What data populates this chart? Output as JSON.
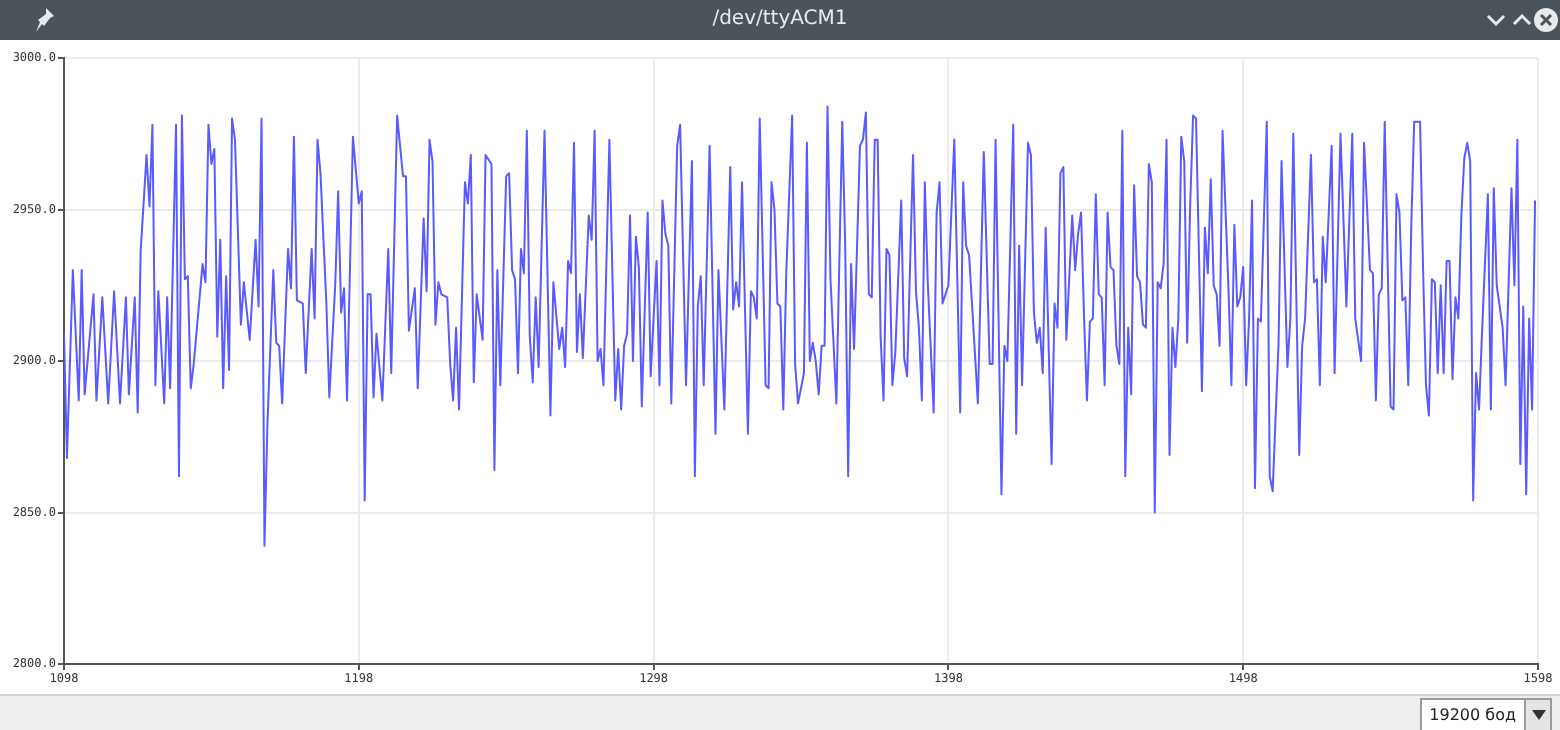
{
  "chart_data": {
    "type": "line",
    "title": "/dev/ttyACM1",
    "color": "#5a5aff",
    "grid": true,
    "legend": false,
    "marker": "none",
    "line_style": "solid",
    "xlim": [
      1098,
      1598
    ],
    "xticks": [
      1098,
      1198,
      1298,
      1398,
      1498,
      1598
    ],
    "ylim": [
      2800,
      3000
    ],
    "yticks": [
      {
        "value": 2800,
        "label": "2800.0"
      },
      {
        "value": 2850,
        "label": "2850.0"
      },
      {
        "value": 2900,
        "label": "2900.0"
      },
      {
        "value": 2950,
        "label": "2950.0"
      },
      {
        "value": 3000,
        "label": "3000.0"
      }
    ],
    "annotations": [
      "19200 бод"
    ],
    "x": [
      1098,
      1099,
      1101,
      1103,
      1104,
      1105,
      1108,
      1109,
      1111,
      1113,
      1115,
      1117,
      1119,
      1120,
      1122,
      1123,
      1124,
      1126,
      1127,
      1128,
      1129,
      1130,
      1132,
      1133,
      1134,
      1136,
      1137,
      1138,
      1139,
      1140,
      1141,
      1142,
      1145,
      1146,
      1147,
      1148,
      1149,
      1150,
      1151,
      1152,
      1153,
      1154,
      1155,
      1156,
      1158,
      1159,
      1161,
      1163,
      1164,
      1165,
      1166,
      1167,
      1169,
      1170,
      1171,
      1172,
      1174,
      1175,
      1176,
      1177,
      1179,
      1180,
      1182,
      1183,
      1184,
      1185,
      1187,
      1188,
      1190,
      1191,
      1192,
      1193,
      1194,
      1196,
      1198,
      1199,
      1200,
      1201,
      1202,
      1203,
      1204,
      1206,
      1208,
      1209,
      1211,
      1213,
      1214,
      1215,
      1217,
      1218,
      1220,
      1221,
      1222,
      1223,
      1224,
      1225,
      1226,
      1228,
      1229,
      1230,
      1231,
      1232,
      1234,
      1235,
      1236,
      1237,
      1238,
      1240,
      1241,
      1243,
      1244,
      1245,
      1246,
      1248,
      1249,
      1250,
      1251,
      1252,
      1253,
      1254,
      1255,
      1256,
      1257,
      1258,
      1259,
      1261,
      1263,
      1264,
      1266,
      1267,
      1268,
      1269,
      1270,
      1271,
      1272,
      1273,
      1274,
      1276,
      1277,
      1278,
      1279,
      1280,
      1281,
      1283,
      1285,
      1286,
      1287,
      1288,
      1289,
      1290,
      1291,
      1292,
      1293,
      1294,
      1296,
      1297,
      1299,
      1300,
      1301,
      1302,
      1303,
      1304,
      1306,
      1307,
      1309,
      1311,
      1312,
      1313,
      1314,
      1315,
      1317,
      1319,
      1320,
      1322,
      1324,
      1325,
      1326,
      1327,
      1328,
      1330,
      1331,
      1332,
      1333,
      1334,
      1336,
      1337,
      1338,
      1339,
      1340,
      1341,
      1342,
      1343,
      1345,
      1346,
      1347,
      1349,
      1350,
      1351,
      1352,
      1353,
      1354,
      1355,
      1356,
      1357,
      1358,
      1360,
      1362,
      1363,
      1364,
      1365,
      1366,
      1368,
      1369,
      1370,
      1371,
      1372,
      1373,
      1374,
      1375,
      1376,
      1377,
      1378,
      1379,
      1380,
      1382,
      1383,
      1384,
      1386,
      1387,
      1388,
      1389,
      1390,
      1391,
      1393,
      1394,
      1395,
      1396,
      1398,
      1400,
      1402,
      1403,
      1404,
      1405,
      1406,
      1408,
      1410,
      1412,
      1413,
      1414,
      1416,
      1417,
      1418,
      1420,
      1421,
      1422,
      1423,
      1425,
      1426,
      1427,
      1428,
      1429,
      1430,
      1431,
      1433,
      1434,
      1435,
      1436,
      1437,
      1438,
      1440,
      1441,
      1442,
      1443,
      1444,
      1445,
      1446,
      1447,
      1448,
      1449,
      1450,
      1451,
      1452,
      1453,
      1454,
      1455,
      1456,
      1457,
      1458,
      1459,
      1460,
      1461,
      1462,
      1463,
      1464,
      1465,
      1466,
      1467,
      1468,
      1469,
      1470,
      1471,
      1472,
      1473,
      1474,
      1475,
      1476,
      1477,
      1478,
      1479,
      1480,
      1481,
      1482,
      1484,
      1485,
      1486,
      1487,
      1488,
      1489,
      1490,
      1491,
      1493,
      1494,
      1495,
      1496,
      1497,
      1498,
      1499,
      1500,
      1501,
      1502,
      1503,
      1504,
      1506,
      1507,
      1508,
      1510,
      1511,
      1513,
      1514,
      1515,
      1517,
      1518,
      1519,
      1521,
      1522,
      1523,
      1524,
      1525,
      1526,
      1528,
      1529,
      1531,
      1532,
      1533,
      1535,
      1536,
      1538,
      1539,
      1541,
      1542,
      1543,
      1544,
      1545,
      1546,
      1548,
      1549,
      1550,
      1551,
      1552,
      1553,
      1554,
      1555,
      1556,
      1558,
      1559,
      1560,
      1561,
      1562,
      1563,
      1564,
      1565,
      1566,
      1567,
      1568,
      1569,
      1570,
      1571,
      1572,
      1573,
      1574,
      1575,
      1576,
      1577,
      1578,
      1579,
      1581,
      1582,
      1583,
      1584,
      1586,
      1587,
      1589,
      1590,
      1591,
      1592,
      1593,
      1594,
      1595,
      1596,
      1597
    ],
    "values": [
      2909,
      2868,
      2930,
      2887,
      2930,
      2889,
      2922,
      2887,
      2921,
      2886,
      2923,
      2886,
      2921,
      2889,
      2921,
      2883,
      2936,
      2968,
      2951,
      2978,
      2892,
      2923,
      2886,
      2921,
      2891,
      2978,
      2862,
      2981,
      2927,
      2928,
      2891,
      2899,
      2932,
      2926,
      2978,
      2965,
      2970,
      2908,
      2940,
      2891,
      2928,
      2897,
      2980,
      2973,
      2912,
      2926,
      2907,
      2940,
      2918,
      2980,
      2839,
      2879,
      2930,
      2906,
      2905,
      2886,
      2937,
      2924,
      2974,
      2920,
      2919,
      2896,
      2937,
      2914,
      2973,
      2962,
      2919,
      2888,
      2925,
      2956,
      2916,
      2924,
      2887,
      2974,
      2952,
      2956,
      2854,
      2922,
      2922,
      2888,
      2909,
      2887,
      2937,
      2896,
      2981,
      2961,
      2961,
      2910,
      2924,
      2891,
      2947,
      2923,
      2973,
      2966,
      2912,
      2926,
      2922,
      2921,
      2899,
      2887,
      2911,
      2884,
      2959,
      2952,
      2968,
      2893,
      2922,
      2907,
      2968,
      2965,
      2864,
      2930,
      2892,
      2961,
      2962,
      2930,
      2927,
      2896,
      2937,
      2929,
      2976,
      2908,
      2893,
      2921,
      2898,
      2976,
      2882,
      2926,
      2904,
      2911,
      2898,
      2933,
      2929,
      2972,
      2903,
      2922,
      2901,
      2948,
      2940,
      2976,
      2900,
      2904,
      2892,
      2973,
      2887,
      2904,
      2884,
      2905,
      2909,
      2948,
      2900,
      2941,
      2931,
      2885,
      2949,
      2895,
      2933,
      2892,
      2953,
      2942,
      2938,
      2886,
      2971,
      2978,
      2892,
      2966,
      2862,
      2918,
      2928,
      2892,
      2971,
      2876,
      2930,
      2884,
      2964,
      2917,
      2926,
      2918,
      2959,
      2876,
      2923,
      2921,
      2914,
      2980,
      2892,
      2891,
      2959,
      2950,
      2919,
      2918,
      2884,
      2929,
      2981,
      2899,
      2886,
      2896,
      2972,
      2900,
      2906,
      2900,
      2889,
      2905,
      2905,
      2984,
      2927,
      2886,
      2979,
      2938,
      2862,
      2932,
      2904,
      2971,
      2973,
      2982,
      2922,
      2921,
      2973,
      2973,
      2908,
      2887,
      2937,
      2935,
      2892,
      2903,
      2953,
      2901,
      2895,
      2968,
      2923,
      2911,
      2887,
      2959,
      2926,
      2883,
      2949,
      2959,
      2919,
      2925,
      2973,
      2883,
      2959,
      2938,
      2935,
      2919,
      2886,
      2969,
      2899,
      2899,
      2973,
      2856,
      2905,
      2900,
      2978,
      2876,
      2938,
      2892,
      2972,
      2968,
      2916,
      2906,
      2911,
      2896,
      2944,
      2866,
      2919,
      2911,
      2962,
      2964,
      2907,
      2948,
      2930,
      2942,
      2949,
      2915,
      2887,
      2913,
      2914,
      2955,
      2922,
      2921,
      2892,
      2949,
      2931,
      2930,
      2905,
      2899,
      2976,
      2862,
      2911,
      2889,
      2958,
      2928,
      2926,
      2912,
      2911,
      2965,
      2959,
      2850,
      2926,
      2924,
      2932,
      2973,
      2869,
      2911,
      2898,
      2914,
      2974,
      2966,
      2906,
      2951,
      2981,
      2980,
      2890,
      2944,
      2929,
      2960,
      2925,
      2922,
      2905,
      2976,
      2924,
      2892,
      2945,
      2918,
      2921,
      2931,
      2892,
      2914,
      2953,
      2858,
      2914,
      2913,
      2979,
      2862,
      2857,
      2906,
      2966,
      2898,
      2914,
      2975,
      2869,
      2905,
      2914,
      2968,
      2926,
      2927,
      2892,
      2941,
      2926,
      2971,
      2896,
      2975,
      2947,
      2918,
      2975,
      2914,
      2900,
      2972,
      2930,
      2929,
      2887,
      2922,
      2924,
      2979,
      2885,
      2884,
      2955,
      2949,
      2920,
      2921,
      2892,
      2944,
      2979,
      2979,
      2931,
      2892,
      2882,
      2927,
      2926,
      2896,
      2925,
      2896,
      2933,
      2933,
      2894,
      2921,
      2914,
      2948,
      2967,
      2972,
      2966,
      2854,
      2896,
      2884,
      2909,
      2955,
      2884,
      2957,
      2925,
      2911,
      2892,
      2957,
      2925,
      2973,
      2866,
      2918,
      2856,
      2914,
      2884,
      2953
    ]
  }
}
